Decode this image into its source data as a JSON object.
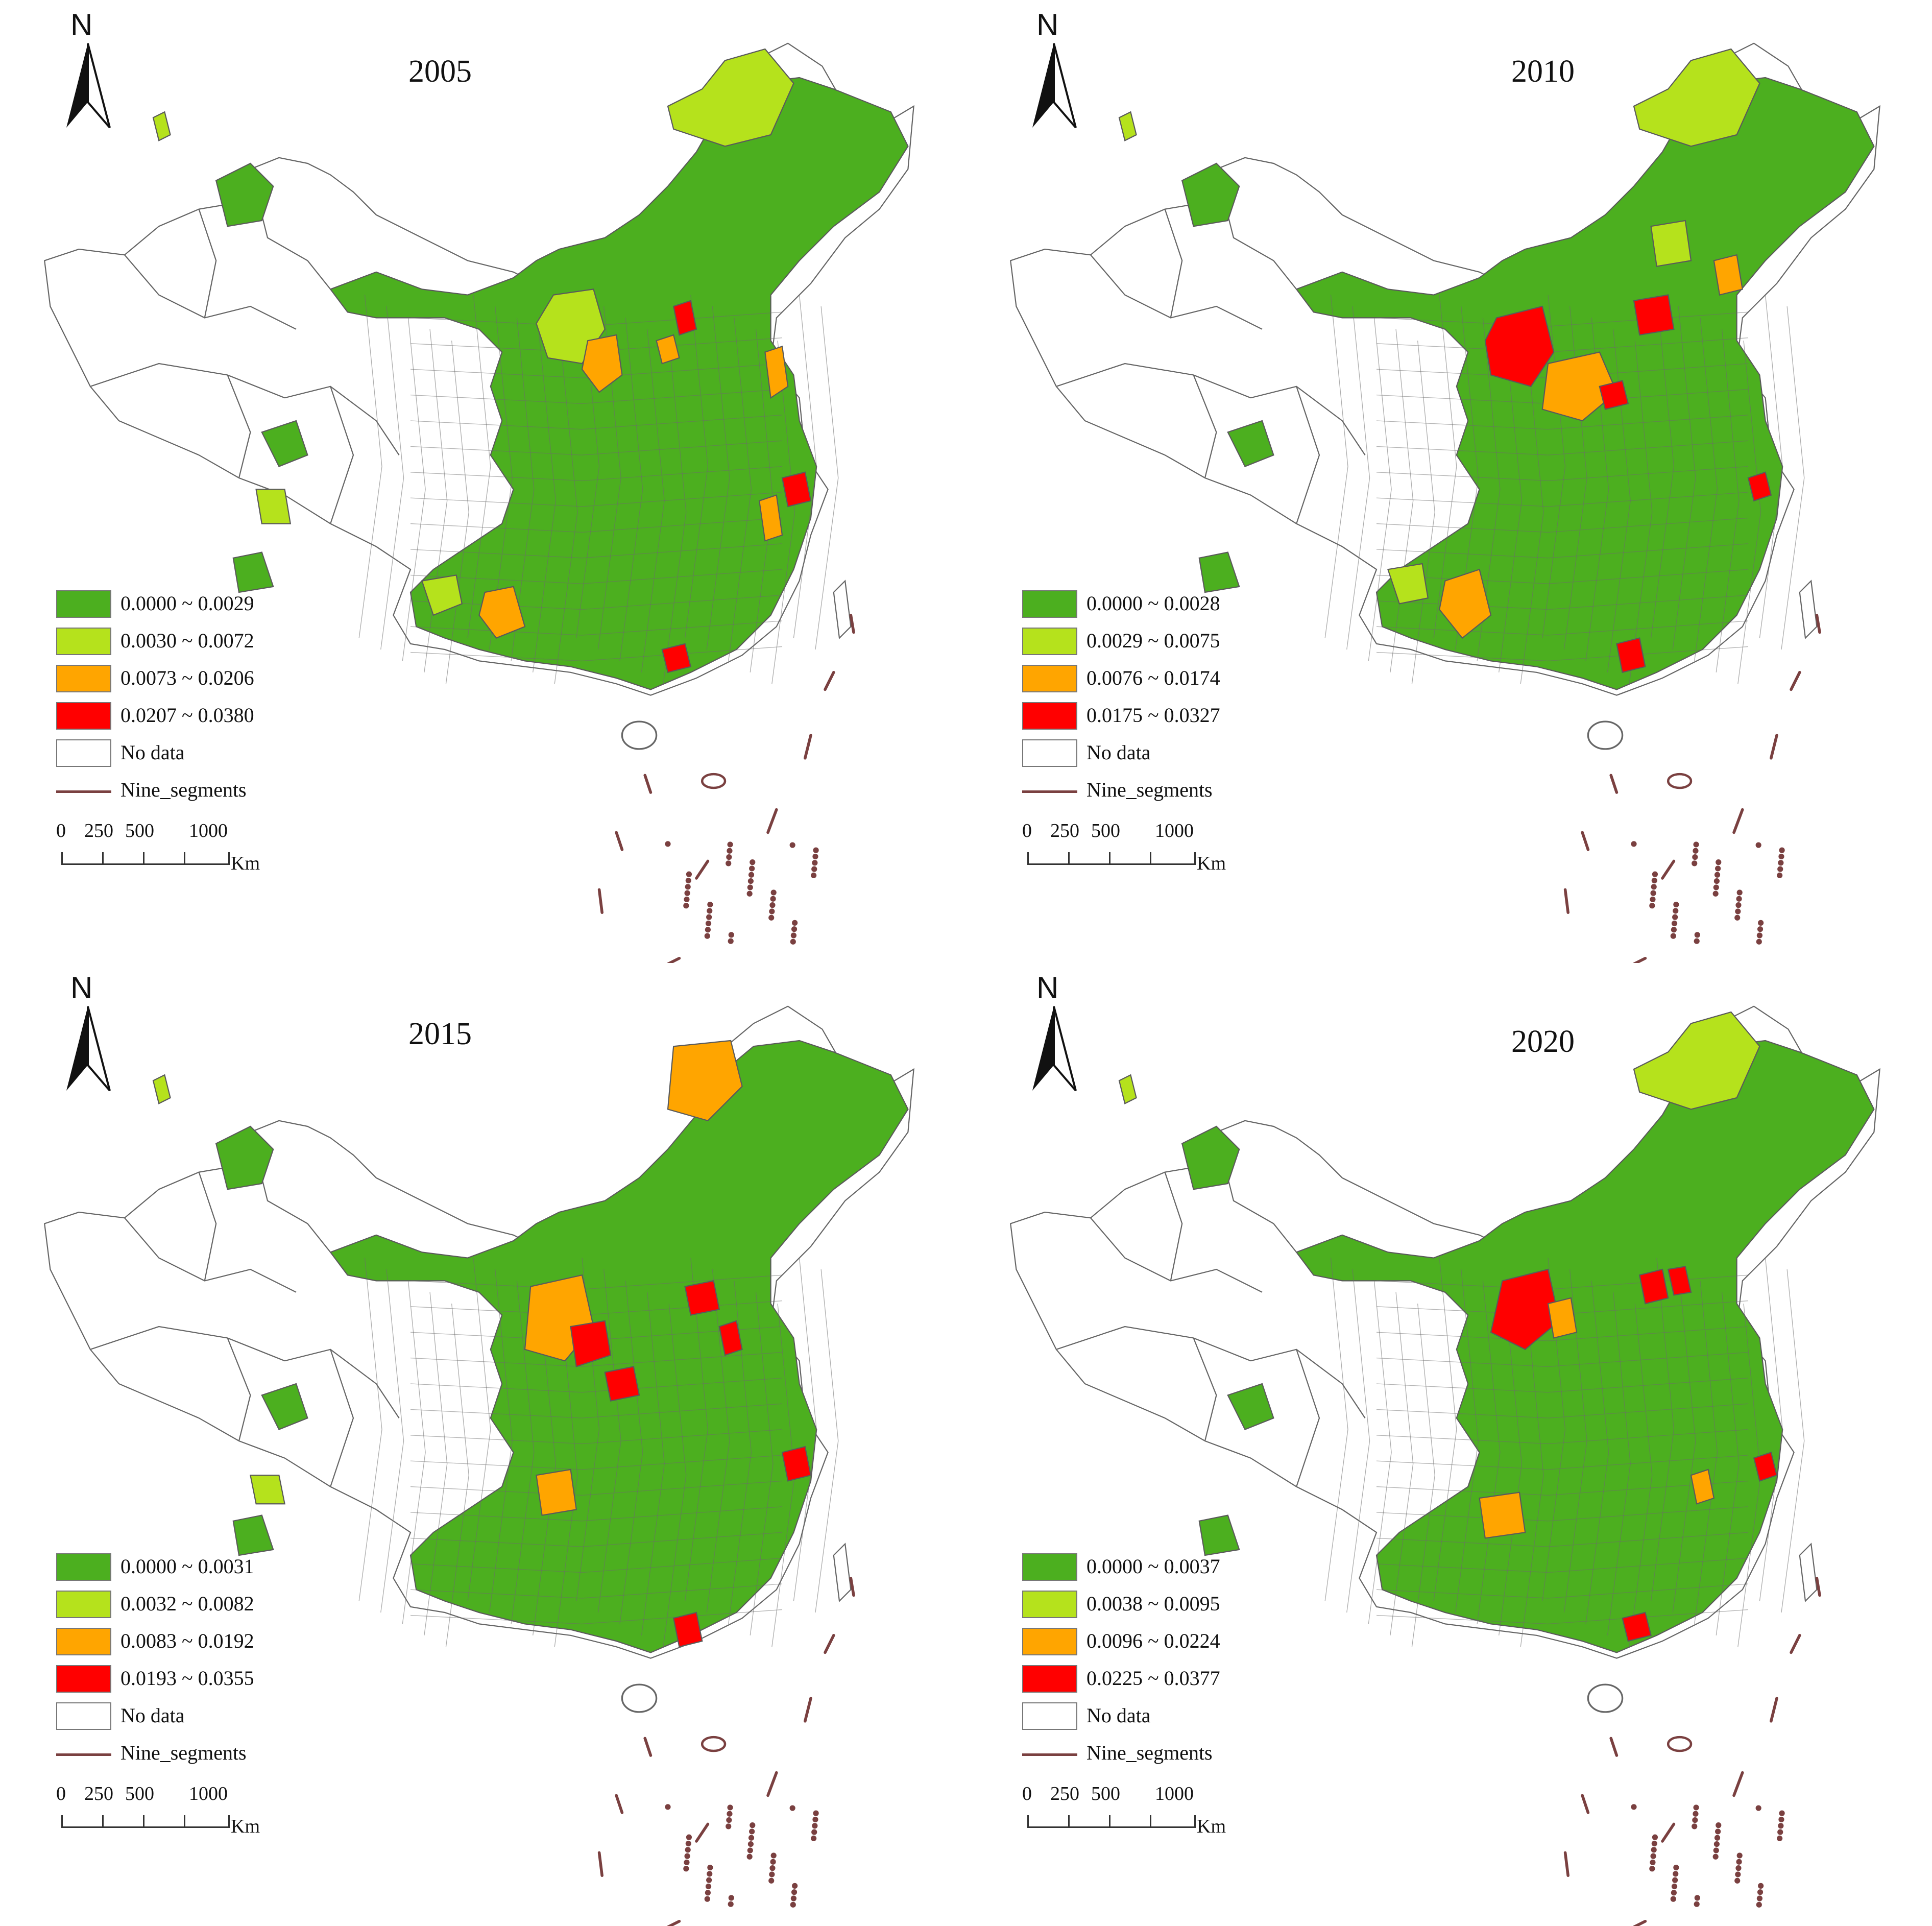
{
  "colors": {
    "class1": "#4caf1f",
    "class2": "#b5e21c",
    "class3": "#ffa500",
    "class4": "#ff0000",
    "nodata": "#ffffff",
    "nine_segments": "#7a4040",
    "boundary": "#666666"
  },
  "north_label": "N",
  "legend_nodata": "No data",
  "legend_nine_segments": "Nine_segments",
  "scale_ticks": [
    "0",
    "250",
    "500",
    "1000"
  ],
  "scale_unit": "Km",
  "panels": [
    {
      "year": "2005",
      "classes": [
        "0.0000 ~ 0.0029",
        "0.0030 ~ 0.0072",
        "0.0073 ~ 0.0206",
        "0.0207 ~ 0.0380"
      ]
    },
    {
      "year": "2010",
      "classes": [
        "0.0000 ~ 0.0028",
        "0.0029 ~ 0.0075",
        "0.0076 ~ 0.0174",
        "0.0175 ~ 0.0327"
      ]
    },
    {
      "year": "2015",
      "classes": [
        "0.0000 ~ 0.0031",
        "0.0032 ~ 0.0082",
        "0.0083 ~ 0.0192",
        "0.0193 ~ 0.0355"
      ]
    },
    {
      "year": "2020",
      "classes": [
        "0.0000 ~ 0.0037",
        "0.0038 ~ 0.0095",
        "0.0096 ~ 0.0224",
        "0.0225 ~ 0.0377"
      ]
    }
  ]
}
